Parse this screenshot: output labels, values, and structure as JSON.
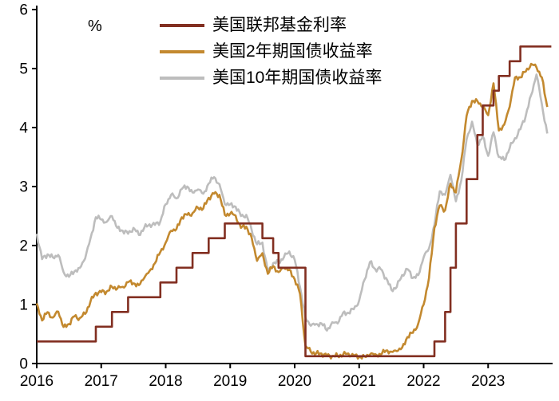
{
  "chart_data": {
    "type": "line",
    "title": "",
    "xlabel": "",
    "ylabel": "%",
    "ylim": [
      0,
      6
    ],
    "yticks": [
      0,
      1,
      2,
      3,
      4,
      5,
      6
    ],
    "xticks": [
      2016,
      2017,
      2018,
      2019,
      2020,
      2021,
      2022,
      2023
    ],
    "x_start": 2016,
    "x_points_per_year": 12,
    "grid": false,
    "legend_position": "top-center-inside",
    "axis_color": "#000000",
    "series": [
      {
        "id": "fed-funds-rate",
        "name": "美国联邦基金利率",
        "color": "#822f21",
        "style": "step",
        "values": [
          0.375,
          0.375,
          0.375,
          0.375,
          0.375,
          0.375,
          0.375,
          0.375,
          0.375,
          0.375,
          0.375,
          0.625,
          0.625,
          0.625,
          0.875,
          0.875,
          0.875,
          1.125,
          1.125,
          1.125,
          1.125,
          1.125,
          1.125,
          1.375,
          1.375,
          1.375,
          1.625,
          1.625,
          1.625,
          1.875,
          1.875,
          1.875,
          2.125,
          2.125,
          2.125,
          2.375,
          2.375,
          2.375,
          2.375,
          2.375,
          2.375,
          2.375,
          2.125,
          2.125,
          1.875,
          1.625,
          1.625,
          1.625,
          1.625,
          1.625,
          0.125,
          0.125,
          0.125,
          0.125,
          0.125,
          0.125,
          0.125,
          0.125,
          0.125,
          0.125,
          0.125,
          0.125,
          0.125,
          0.125,
          0.125,
          0.125,
          0.125,
          0.125,
          0.125,
          0.125,
          0.125,
          0.125,
          0.125,
          0.125,
          0.375,
          0.375,
          0.875,
          1.625,
          2.375,
          2.375,
          3.125,
          3.125,
          3.875,
          4.375,
          4.375,
          4.625,
          4.875,
          4.875,
          5.125,
          5.125,
          5.375,
          5.375,
          5.375,
          5.375,
          5.375,
          5.375
        ]
      },
      {
        "id": "us-2y-treasury-yield",
        "name": "美国2年期国债收益率",
        "color": "#c3892f",
        "style": "line",
        "values": [
          1.02,
          0.73,
          0.87,
          0.78,
          0.88,
          0.62,
          0.67,
          0.8,
          0.77,
          0.84,
          1.05,
          1.2,
          1.21,
          1.22,
          1.3,
          1.27,
          1.3,
          1.38,
          1.36,
          1.33,
          1.45,
          1.57,
          1.7,
          1.89,
          2.05,
          2.25,
          2.28,
          2.48,
          2.52,
          2.55,
          2.64,
          2.63,
          2.81,
          2.88,
          2.86,
          2.52,
          2.54,
          2.51,
          2.3,
          2.32,
          2.13,
          1.74,
          1.87,
          1.52,
          1.65,
          1.55,
          1.62,
          1.59,
          1.43,
          1.18,
          0.3,
          0.2,
          0.17,
          0.17,
          0.13,
          0.13,
          0.13,
          0.15,
          0.17,
          0.13,
          0.11,
          0.12,
          0.15,
          0.16,
          0.15,
          0.22,
          0.2,
          0.21,
          0.27,
          0.45,
          0.52,
          0.68,
          1.0,
          1.45,
          2.3,
          2.68,
          2.6,
          3.05,
          2.9,
          3.45,
          4.2,
          4.45,
          4.45,
          4.35,
          4.21,
          4.75,
          3.95,
          4.05,
          4.35,
          4.85,
          4.85,
          4.95,
          5.08,
          5.02,
          4.85,
          4.35
        ]
      },
      {
        "id": "us-10y-treasury-yield",
        "name": "美国10年期国债收益率",
        "color": "#bdbdbd",
        "style": "line",
        "values": [
          2.2,
          1.77,
          1.85,
          1.8,
          1.84,
          1.55,
          1.47,
          1.56,
          1.62,
          1.78,
          2.12,
          2.48,
          2.44,
          2.4,
          2.5,
          2.3,
          2.25,
          2.2,
          2.3,
          2.18,
          2.3,
          2.36,
          2.35,
          2.41,
          2.7,
          2.86,
          2.8,
          2.96,
          3.0,
          2.9,
          2.95,
          2.88,
          3.05,
          3.16,
          3.04,
          2.7,
          2.7,
          2.66,
          2.5,
          2.52,
          2.26,
          2.02,
          2.05,
          1.55,
          1.7,
          1.72,
          1.8,
          1.9,
          1.76,
          1.3,
          0.78,
          0.64,
          0.67,
          0.68,
          0.56,
          0.7,
          0.68,
          0.86,
          0.86,
          0.92,
          1.07,
          1.42,
          1.72,
          1.6,
          1.6,
          1.45,
          1.25,
          1.3,
          1.5,
          1.6,
          1.45,
          1.5,
          1.8,
          1.95,
          2.35,
          2.92,
          2.86,
          3.2,
          2.75,
          3.1,
          3.8,
          4.1,
          3.7,
          3.85,
          3.52,
          3.92,
          3.5,
          3.45,
          3.65,
          3.82,
          3.97,
          4.2,
          4.55,
          4.9,
          4.4,
          3.9
        ]
      }
    ]
  }
}
